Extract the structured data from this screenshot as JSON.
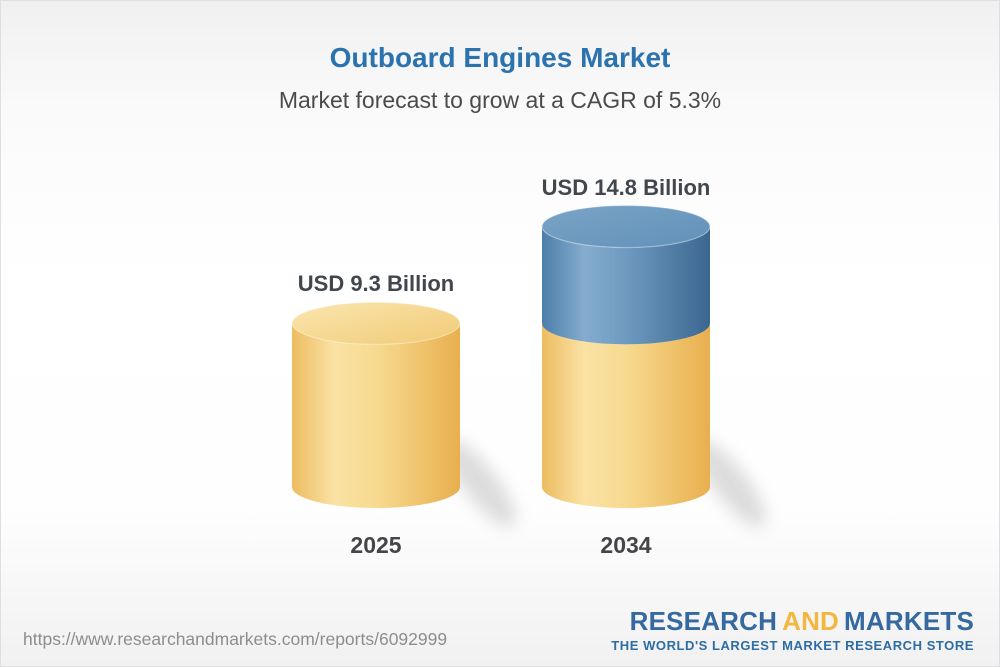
{
  "header": {
    "title": "Outboard Engines Market",
    "subtitle": "Market forecast to grow at a CAGR of 5.3%"
  },
  "chart_data": {
    "type": "bar",
    "bar_style": "3d-cylinder",
    "title": "Outboard Engines Market",
    "subtitle": "Market forecast to grow at a CAGR of 5.3%",
    "categories": [
      "2025",
      "2034"
    ],
    "values": [
      9.3,
      14.8
    ],
    "unit": "USD Billion",
    "value_labels": [
      "USD 9.3 Billion",
      "USD 14.8 Billion"
    ],
    "cagr_percent": 5.3,
    "ylim": [
      0,
      16
    ],
    "grid": false,
    "legend": null,
    "colors": {
      "base_segment": "#F5D88E",
      "growth_segment": "#5E8CB5"
    }
  },
  "footer": {
    "url": "https://www.researchandmarkets.com/reports/6092999",
    "logo": {
      "word1": "RESEARCH",
      "word2": "AND",
      "word3": "MARKETS",
      "tagline": "THE WORLD'S LARGEST MARKET RESEARCH STORE"
    }
  },
  "colors": {
    "title": "#2B73AE",
    "subtitle": "#4A4B4D",
    "value_label": "#42474E",
    "url_text": "#8D8D8F",
    "logo_blue": "#35699F",
    "logo_gold": "#F1B73F"
  }
}
